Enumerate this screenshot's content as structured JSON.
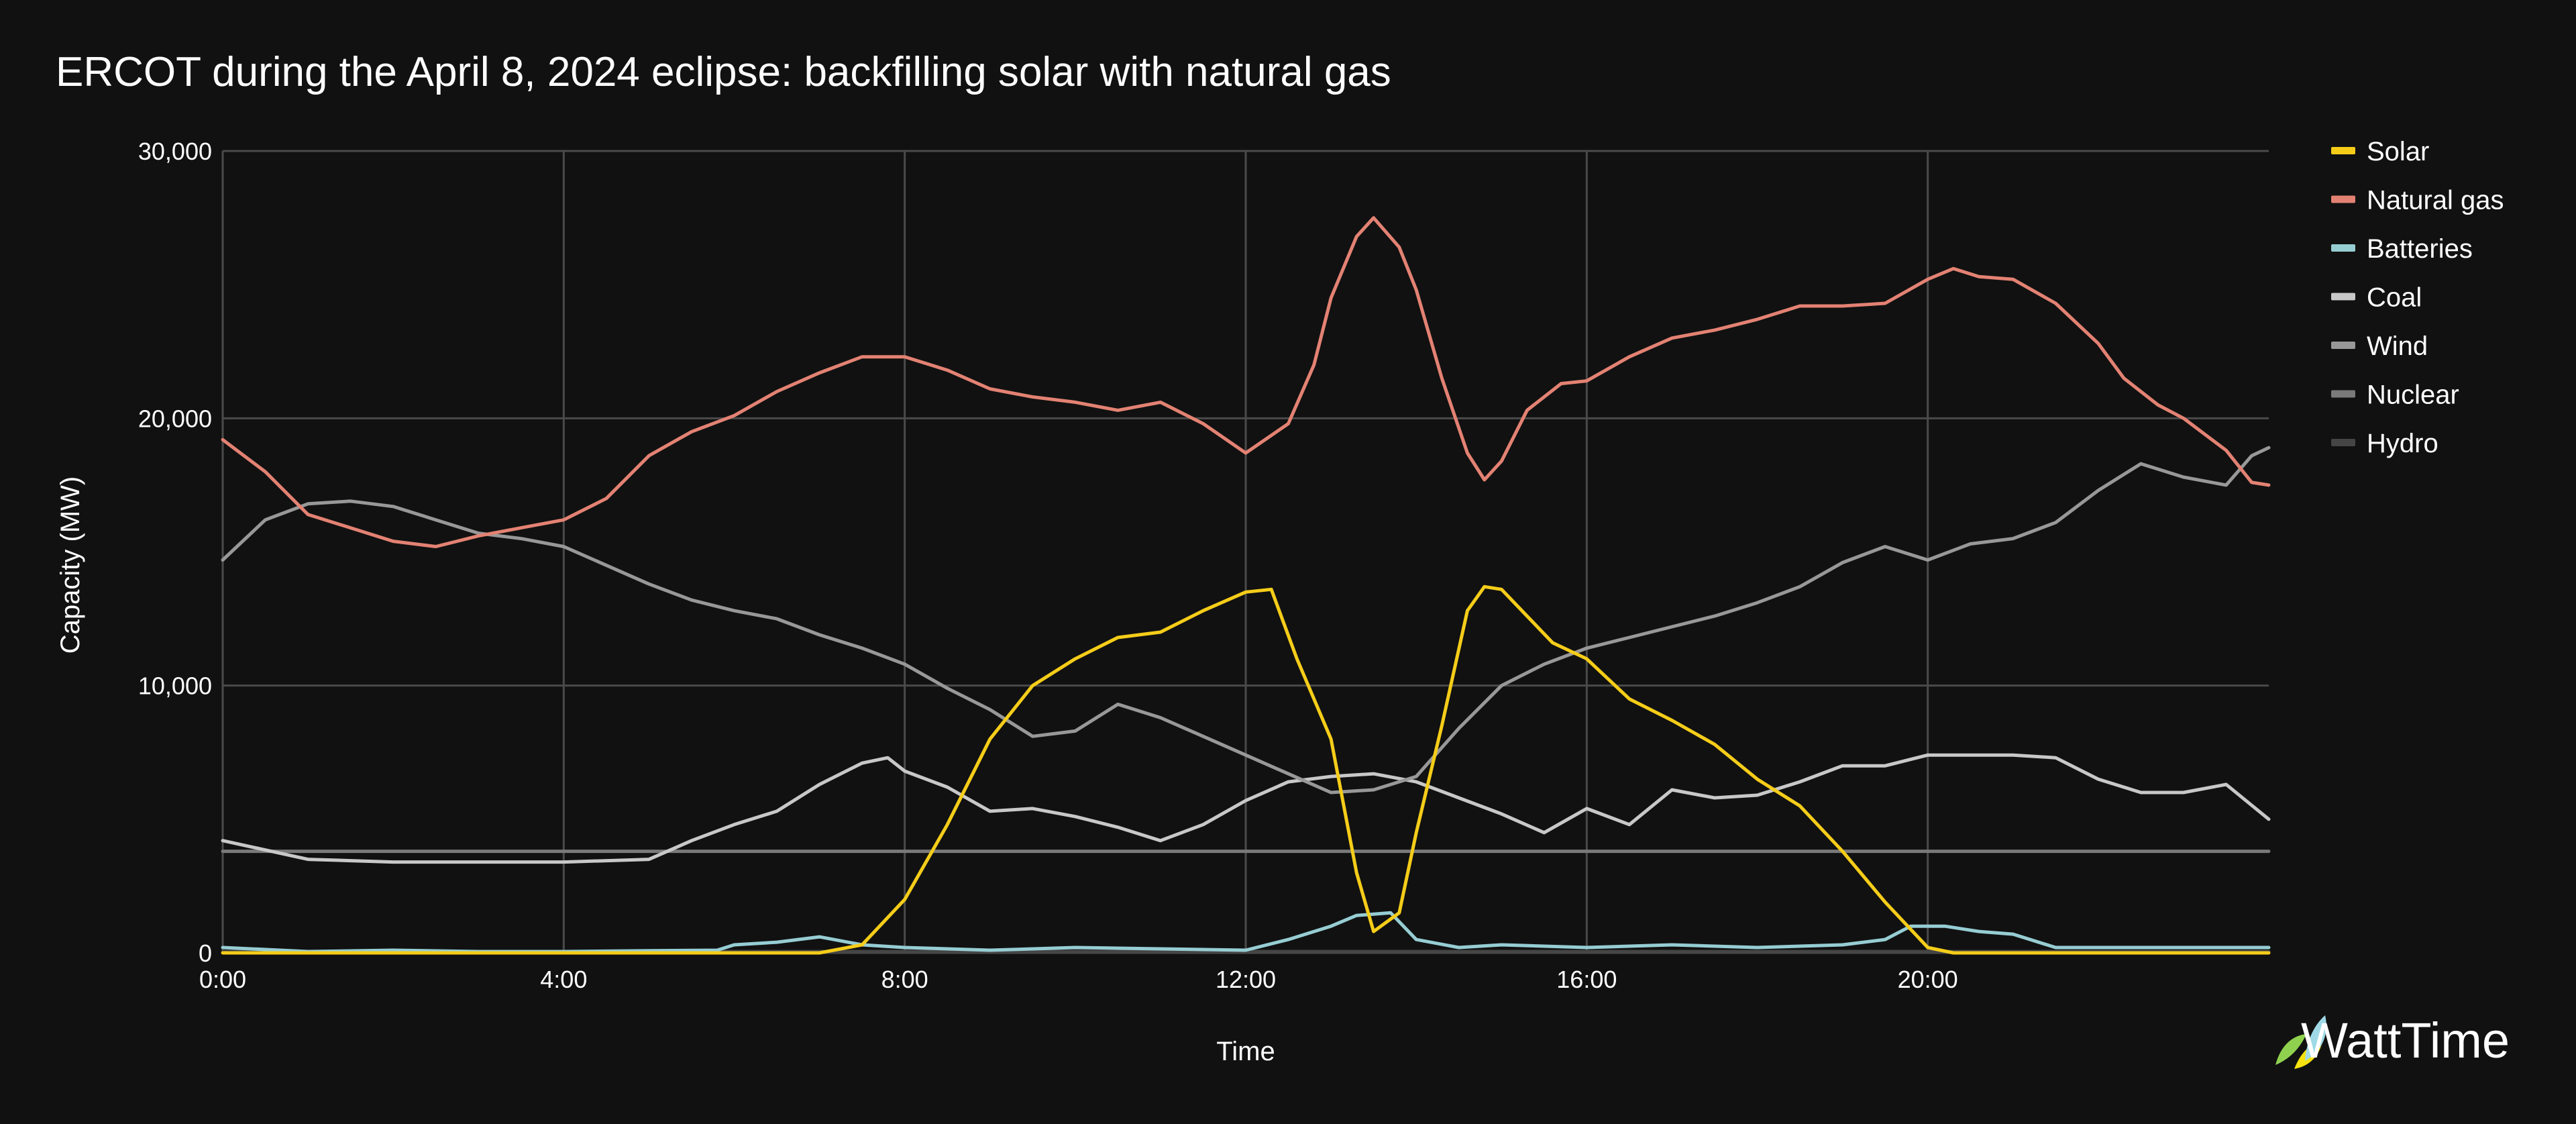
{
  "chart_data": {
    "type": "line",
    "title": "ERCOT during the April 8, 2024 eclipse: backfilling solar with natural gas",
    "xlabel": "Time",
    "ylabel": "Capacity (MW)",
    "x_unit": "hour of day",
    "xlim": [
      0,
      24
    ],
    "ylim": [
      0,
      30000
    ],
    "x_ticks": [
      {
        "value": 0,
        "label": "0:00"
      },
      {
        "value": 4,
        "label": "4:00"
      },
      {
        "value": 8,
        "label": "8:00"
      },
      {
        "value": 12,
        "label": "12:00"
      },
      {
        "value": 16,
        "label": "16:00"
      },
      {
        "value": 20,
        "label": "20:00"
      }
    ],
    "y_ticks": [
      {
        "value": 0,
        "label": "0"
      },
      {
        "value": 10000,
        "label": "10,000"
      },
      {
        "value": 20000,
        "label": "20,000"
      },
      {
        "value": 30000,
        "label": "30,000"
      }
    ],
    "grid": true,
    "legend_position": "right",
    "series": [
      {
        "name": "Solar",
        "color": "#f5cd19",
        "points": [
          [
            0,
            0
          ],
          [
            7,
            0
          ],
          [
            7.5,
            300
          ],
          [
            8,
            2000
          ],
          [
            8.5,
            4800
          ],
          [
            9,
            8000
          ],
          [
            9.5,
            10000
          ],
          [
            10,
            11000
          ],
          [
            10.5,
            11800
          ],
          [
            11,
            12000
          ],
          [
            11.5,
            12800
          ],
          [
            12,
            13500
          ],
          [
            12.3,
            13600
          ],
          [
            12.6,
            11000
          ],
          [
            13,
            8000
          ],
          [
            13.3,
            3000
          ],
          [
            13.5,
            800
          ],
          [
            13.8,
            1500
          ],
          [
            14,
            4500
          ],
          [
            14.3,
            8500
          ],
          [
            14.6,
            12800
          ],
          [
            14.8,
            13700
          ],
          [
            15,
            13600
          ],
          [
            15.3,
            12600
          ],
          [
            15.6,
            11600
          ],
          [
            16,
            11000
          ],
          [
            16.5,
            9500
          ],
          [
            17,
            8700
          ],
          [
            17.5,
            7800
          ],
          [
            18,
            6500
          ],
          [
            18.5,
            5500
          ],
          [
            19,
            3800
          ],
          [
            19.5,
            1900
          ],
          [
            20,
            200
          ],
          [
            20.3,
            0
          ],
          [
            24,
            0
          ]
        ]
      },
      {
        "name": "Natural gas",
        "color": "#e38273",
        "points": [
          [
            0,
            19200
          ],
          [
            0.5,
            18000
          ],
          [
            1,
            16400
          ],
          [
            1.5,
            15900
          ],
          [
            2,
            15400
          ],
          [
            2.5,
            15200
          ],
          [
            3,
            15600
          ],
          [
            3.5,
            15900
          ],
          [
            4,
            16200
          ],
          [
            4.5,
            17000
          ],
          [
            5,
            18600
          ],
          [
            5.5,
            19500
          ],
          [
            6,
            20100
          ],
          [
            6.5,
            21000
          ],
          [
            7,
            21700
          ],
          [
            7.5,
            22300
          ],
          [
            8,
            22300
          ],
          [
            8.5,
            21800
          ],
          [
            9,
            21100
          ],
          [
            9.5,
            20800
          ],
          [
            10,
            20600
          ],
          [
            10.5,
            20300
          ],
          [
            11,
            20600
          ],
          [
            11.5,
            19800
          ],
          [
            12,
            18700
          ],
          [
            12.5,
            19800
          ],
          [
            12.8,
            22000
          ],
          [
            13,
            24500
          ],
          [
            13.3,
            26800
          ],
          [
            13.5,
            27500
          ],
          [
            13.8,
            26400
          ],
          [
            14,
            24800
          ],
          [
            14.3,
            21500
          ],
          [
            14.6,
            18700
          ],
          [
            14.8,
            17700
          ],
          [
            15,
            18400
          ],
          [
            15.3,
            20300
          ],
          [
            15.7,
            21300
          ],
          [
            16,
            21400
          ],
          [
            16.5,
            22300
          ],
          [
            17,
            23000
          ],
          [
            17.5,
            23300
          ],
          [
            18,
            23700
          ],
          [
            18.5,
            24200
          ],
          [
            19,
            24200
          ],
          [
            19.5,
            24300
          ],
          [
            20,
            25200
          ],
          [
            20.3,
            25600
          ],
          [
            20.6,
            25300
          ],
          [
            21,
            25200
          ],
          [
            21.5,
            24300
          ],
          [
            22,
            22800
          ],
          [
            22.3,
            21500
          ],
          [
            22.7,
            20500
          ],
          [
            23,
            20000
          ],
          [
            23.5,
            18800
          ],
          [
            23.8,
            17600
          ],
          [
            24,
            17500
          ]
        ]
      },
      {
        "name": "Batteries",
        "color": "#96cdd3",
        "points": [
          [
            0,
            200
          ],
          [
            1,
            50
          ],
          [
            2,
            100
          ],
          [
            3,
            50
          ],
          [
            4,
            50
          ],
          [
            5,
            80
          ],
          [
            5.8,
            100
          ],
          [
            6,
            300
          ],
          [
            6.5,
            400
          ],
          [
            7,
            600
          ],
          [
            7.5,
            300
          ],
          [
            8,
            200
          ],
          [
            9,
            100
          ],
          [
            10,
            200
          ],
          [
            11,
            150
          ],
          [
            12,
            100
          ],
          [
            12.5,
            500
          ],
          [
            13,
            1000
          ],
          [
            13.3,
            1400
          ],
          [
            13.7,
            1500
          ],
          [
            14,
            500
          ],
          [
            14.5,
            200
          ],
          [
            15,
            300
          ],
          [
            16,
            200
          ],
          [
            17,
            300
          ],
          [
            18,
            200
          ],
          [
            19,
            300
          ],
          [
            19.5,
            500
          ],
          [
            19.8,
            1000
          ],
          [
            20.2,
            1000
          ],
          [
            20.6,
            800
          ],
          [
            21,
            700
          ],
          [
            21.5,
            200
          ],
          [
            22,
            200
          ],
          [
            23,
            200
          ],
          [
            24,
            200
          ]
        ]
      },
      {
        "name": "Coal",
        "color": "#c8c8c8",
        "points": [
          [
            0,
            4200
          ],
          [
            1,
            3500
          ],
          [
            2,
            3400
          ],
          [
            3,
            3400
          ],
          [
            4,
            3400
          ],
          [
            5,
            3500
          ],
          [
            5.5,
            4200
          ],
          [
            6,
            4800
          ],
          [
            6.5,
            5300
          ],
          [
            7,
            6300
          ],
          [
            7.5,
            7100
          ],
          [
            7.8,
            7300
          ],
          [
            8,
            6800
          ],
          [
            8.5,
            6200
          ],
          [
            9,
            5300
          ],
          [
            9.5,
            5400
          ],
          [
            10,
            5100
          ],
          [
            10.5,
            4700
          ],
          [
            11,
            4200
          ],
          [
            11.5,
            4800
          ],
          [
            12,
            5700
          ],
          [
            12.5,
            6400
          ],
          [
            13,
            6600
          ],
          [
            13.5,
            6700
          ],
          [
            14,
            6400
          ],
          [
            14.5,
            5800
          ],
          [
            15,
            5200
          ],
          [
            15.5,
            4500
          ],
          [
            16,
            5400
          ],
          [
            16.5,
            4800
          ],
          [
            17,
            6100
          ],
          [
            17.5,
            5800
          ],
          [
            18,
            5900
          ],
          [
            18.5,
            6400
          ],
          [
            19,
            7000
          ],
          [
            19.5,
            7000
          ],
          [
            20,
            7400
          ],
          [
            21,
            7400
          ],
          [
            21.5,
            7300
          ],
          [
            22,
            6500
          ],
          [
            22.5,
            6000
          ],
          [
            23,
            6000
          ],
          [
            23.5,
            6300
          ],
          [
            24,
            5000
          ]
        ]
      },
      {
        "name": "Wind",
        "color": "#989898",
        "points": [
          [
            0,
            14700
          ],
          [
            0.5,
            16200
          ],
          [
            1,
            16800
          ],
          [
            1.5,
            16900
          ],
          [
            2,
            16700
          ],
          [
            2.5,
            16200
          ],
          [
            3,
            15700
          ],
          [
            3.5,
            15500
          ],
          [
            4,
            15200
          ],
          [
            4.5,
            14500
          ],
          [
            5,
            13800
          ],
          [
            5.5,
            13200
          ],
          [
            6,
            12800
          ],
          [
            6.5,
            12500
          ],
          [
            7,
            11900
          ],
          [
            7.5,
            11400
          ],
          [
            8,
            10800
          ],
          [
            8.5,
            9900
          ],
          [
            9,
            9100
          ],
          [
            9.5,
            8100
          ],
          [
            10,
            8300
          ],
          [
            10.5,
            9300
          ],
          [
            11,
            8800
          ],
          [
            11.5,
            8100
          ],
          [
            12,
            7400
          ],
          [
            12.5,
            6700
          ],
          [
            13,
            6000
          ],
          [
            13.5,
            6100
          ],
          [
            14,
            6600
          ],
          [
            14.5,
            8400
          ],
          [
            15,
            10000
          ],
          [
            15.5,
            10800
          ],
          [
            16,
            11400
          ],
          [
            16.5,
            11800
          ],
          [
            17,
            12200
          ],
          [
            17.5,
            12600
          ],
          [
            18,
            13100
          ],
          [
            18.5,
            13700
          ],
          [
            19,
            14600
          ],
          [
            19.5,
            15200
          ],
          [
            20,
            14700
          ],
          [
            20.5,
            15300
          ],
          [
            21,
            15500
          ],
          [
            21.5,
            16100
          ],
          [
            22,
            17300
          ],
          [
            22.5,
            18300
          ],
          [
            23,
            17800
          ],
          [
            23.5,
            17500
          ],
          [
            23.8,
            18600
          ],
          [
            24,
            18900
          ]
        ]
      },
      {
        "name": "Nuclear",
        "color": "#7a7a7a",
        "points": [
          [
            0,
            3800
          ],
          [
            24,
            3800
          ]
        ]
      },
      {
        "name": "Hydro",
        "color": "#454545",
        "points": [
          [
            0,
            50
          ],
          [
            24,
            50
          ]
        ]
      }
    ]
  },
  "brand": {
    "logo_text": "WattTime",
    "logo_icon": "watttime-leaf-icon"
  }
}
